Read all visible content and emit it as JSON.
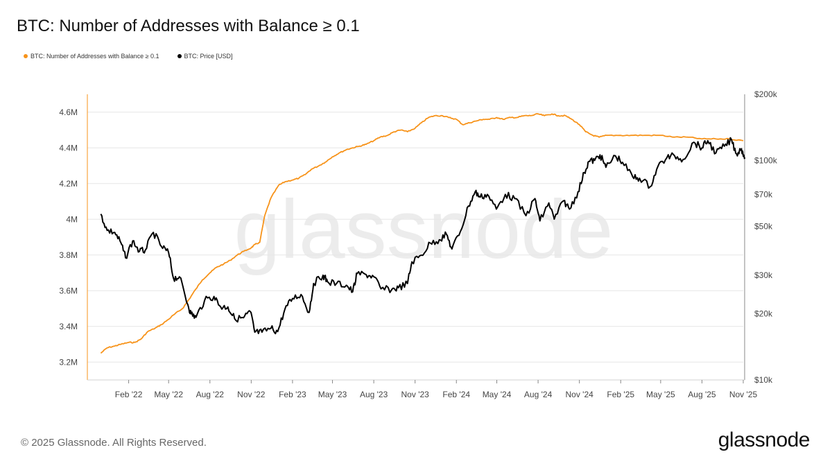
{
  "title": "BTC: Number of Addresses with Balance ≥ 0.1",
  "legend": [
    {
      "label": "BTC: Number of Addresses with Balance ≥ 0.1",
      "color": "#f7931a"
    },
    {
      "label": "BTC: Price [USD]",
      "color": "#000000"
    }
  ],
  "watermark": "glassnode",
  "footer": {
    "copyright": "© 2025 Glassnode. All Rights Reserved.",
    "logo": "glassnode"
  },
  "chart_data": {
    "type": "line",
    "x_axis": {
      "ticks": [
        "Feb '22",
        "May '22",
        "Aug '22",
        "Nov '22",
        "Feb '23",
        "May '23",
        "Aug '23",
        "Nov '23",
        "Feb '24",
        "May '24",
        "Aug '24",
        "Nov '24",
        "Feb '25",
        "May '25",
        "Aug '25",
        "Nov '25"
      ],
      "range": [
        "2021-11",
        "2025-11"
      ]
    },
    "y_left": {
      "ticks": [
        "3.2M",
        "3.4M",
        "3.6M",
        "3.8M",
        "4M",
        "4.2M",
        "4.4M",
        "4.6M"
      ],
      "range": [
        3.1,
        4.7
      ],
      "unit": "M addresses"
    },
    "y_right": {
      "ticks": [
        "$10k",
        "$20k",
        "$30k",
        "$50k",
        "$70k",
        "$100k",
        "$200k"
      ],
      "tick_values": [
        10000,
        20000,
        30000,
        50000,
        70000,
        100000,
        200000
      ],
      "scale": "log",
      "range": [
        10000,
        200000
      ]
    },
    "grid": true,
    "series": [
      {
        "name": "BTC: Number of Addresses with Balance ≥ 0.1",
        "color": "#f7931a",
        "axis": "left",
        "points": [
          [
            "2021-12-01",
            3.25
          ],
          [
            "2021-12-15",
            3.28
          ],
          [
            "2022-01-01",
            3.29
          ],
          [
            "2022-01-15",
            3.3
          ],
          [
            "2022-02-01",
            3.31
          ],
          [
            "2022-02-15",
            3.31
          ],
          [
            "2022-03-01",
            3.33
          ],
          [
            "2022-03-15",
            3.37
          ],
          [
            "2022-04-01",
            3.39
          ],
          [
            "2022-04-15",
            3.41
          ],
          [
            "2022-05-01",
            3.44
          ],
          [
            "2022-05-15",
            3.47
          ],
          [
            "2022-06-01",
            3.5
          ],
          [
            "2022-06-15",
            3.55
          ],
          [
            "2022-07-01",
            3.61
          ],
          [
            "2022-07-15",
            3.66
          ],
          [
            "2022-08-01",
            3.7
          ],
          [
            "2022-08-15",
            3.73
          ],
          [
            "2022-09-01",
            3.75
          ],
          [
            "2022-09-15",
            3.77
          ],
          [
            "2022-10-01",
            3.8
          ],
          [
            "2022-10-15",
            3.82
          ],
          [
            "2022-11-01",
            3.84
          ],
          [
            "2022-11-10",
            3.86
          ],
          [
            "2022-11-20",
            3.87
          ],
          [
            "2022-12-01",
            4.02
          ],
          [
            "2022-12-15",
            4.12
          ],
          [
            "2023-01-01",
            4.19
          ],
          [
            "2023-01-15",
            4.21
          ],
          [
            "2023-02-01",
            4.22
          ],
          [
            "2023-02-15",
            4.23
          ],
          [
            "2023-03-01",
            4.25
          ],
          [
            "2023-03-15",
            4.28
          ],
          [
            "2023-04-01",
            4.3
          ],
          [
            "2023-04-15",
            4.32
          ],
          [
            "2023-05-01",
            4.35
          ],
          [
            "2023-05-15",
            4.37
          ],
          [
            "2023-06-01",
            4.39
          ],
          [
            "2023-06-15",
            4.4
          ],
          [
            "2023-07-01",
            4.41
          ],
          [
            "2023-07-15",
            4.42
          ],
          [
            "2023-08-01",
            4.44
          ],
          [
            "2023-08-15",
            4.46
          ],
          [
            "2023-09-01",
            4.47
          ],
          [
            "2023-09-15",
            4.49
          ],
          [
            "2023-10-01",
            4.5
          ],
          [
            "2023-10-15",
            4.49
          ],
          [
            "2023-11-01",
            4.51
          ],
          [
            "2023-11-15",
            4.54
          ],
          [
            "2023-12-01",
            4.57
          ],
          [
            "2023-12-15",
            4.58
          ],
          [
            "2024-01-01",
            4.58
          ],
          [
            "2024-01-15",
            4.57
          ],
          [
            "2024-02-01",
            4.56
          ],
          [
            "2024-02-15",
            4.53
          ],
          [
            "2024-03-01",
            4.54
          ],
          [
            "2024-03-15",
            4.55
          ],
          [
            "2024-04-01",
            4.56
          ],
          [
            "2024-04-15",
            4.56
          ],
          [
            "2024-05-01",
            4.57
          ],
          [
            "2024-05-15",
            4.56
          ],
          [
            "2024-06-01",
            4.57
          ],
          [
            "2024-06-15",
            4.57
          ],
          [
            "2024-07-01",
            4.58
          ],
          [
            "2024-07-15",
            4.58
          ],
          [
            "2024-08-01",
            4.59
          ],
          [
            "2024-08-15",
            4.58
          ],
          [
            "2024-09-01",
            4.59
          ],
          [
            "2024-09-15",
            4.58
          ],
          [
            "2024-10-01",
            4.58
          ],
          [
            "2024-10-15",
            4.56
          ],
          [
            "2024-11-01",
            4.53
          ],
          [
            "2024-11-15",
            4.49
          ],
          [
            "2024-12-01",
            4.47
          ],
          [
            "2024-12-15",
            4.46
          ],
          [
            "2025-01-01",
            4.47
          ],
          [
            "2025-02-01",
            4.47
          ],
          [
            "2025-03-01",
            4.47
          ],
          [
            "2025-04-01",
            4.47
          ],
          [
            "2025-05-01",
            4.47
          ],
          [
            "2025-06-01",
            4.46
          ],
          [
            "2025-07-01",
            4.46
          ],
          [
            "2025-08-01",
            4.45
          ],
          [
            "2025-09-01",
            4.45
          ],
          [
            "2025-10-01",
            4.45
          ],
          [
            "2025-11-01",
            4.44
          ]
        ]
      },
      {
        "name": "BTC: Price [USD]",
        "color": "#000000",
        "axis": "right",
        "points": [
          [
            "2021-12-01",
            57000
          ],
          [
            "2021-12-15",
            48000
          ],
          [
            "2022-01-01",
            47000
          ],
          [
            "2022-01-15",
            42000
          ],
          [
            "2022-01-25",
            36000
          ],
          [
            "2022-02-10",
            43000
          ],
          [
            "2022-02-25",
            38500
          ],
          [
            "2022-03-10",
            39000
          ],
          [
            "2022-03-28",
            47000
          ],
          [
            "2022-04-15",
            40500
          ],
          [
            "2022-05-01",
            38000
          ],
          [
            "2022-05-12",
            29000
          ],
          [
            "2022-05-25",
            29500
          ],
          [
            "2022-06-13",
            22000
          ],
          [
            "2022-06-20",
            20000
          ],
          [
            "2022-07-01",
            19300
          ],
          [
            "2022-07-20",
            23000
          ],
          [
            "2022-08-10",
            24000
          ],
          [
            "2022-08-25",
            21500
          ],
          [
            "2022-09-10",
            21500
          ],
          [
            "2022-09-25",
            19000
          ],
          [
            "2022-10-15",
            19200
          ],
          [
            "2022-10-30",
            20500
          ],
          [
            "2022-11-09",
            16500
          ],
          [
            "2022-11-25",
            16500
          ],
          [
            "2022-12-15",
            17200
          ],
          [
            "2022-12-30",
            16600
          ],
          [
            "2023-01-15",
            21000
          ],
          [
            "2023-02-01",
            23500
          ],
          [
            "2023-02-20",
            24500
          ],
          [
            "2023-03-10",
            20300
          ],
          [
            "2023-03-20",
            27500
          ],
          [
            "2023-04-10",
            30000
          ],
          [
            "2023-04-20",
            28000
          ],
          [
            "2023-05-10",
            27500
          ],
          [
            "2023-06-01",
            27000
          ],
          [
            "2023-06-15",
            25200
          ],
          [
            "2023-06-25",
            30500
          ],
          [
            "2023-07-15",
            30200
          ],
          [
            "2023-08-01",
            29500
          ],
          [
            "2023-08-17",
            26000
          ],
          [
            "2023-09-10",
            25800
          ],
          [
            "2023-09-25",
            26300
          ],
          [
            "2023-10-15",
            27500
          ],
          [
            "2023-10-25",
            34500
          ],
          [
            "2023-11-15",
            37000
          ],
          [
            "2023-12-05",
            42000
          ],
          [
            "2023-12-25",
            43500
          ],
          [
            "2024-01-10",
            46000
          ],
          [
            "2024-01-22",
            39500
          ],
          [
            "2024-02-10",
            47500
          ],
          [
            "2024-02-28",
            62000
          ],
          [
            "2024-03-14",
            72000
          ],
          [
            "2024-03-25",
            68000
          ],
          [
            "2024-04-10",
            70000
          ],
          [
            "2024-04-30",
            60000
          ],
          [
            "2024-05-20",
            70000
          ],
          [
            "2024-06-10",
            67000
          ],
          [
            "2024-07-05",
            56000
          ],
          [
            "2024-07-25",
            67000
          ],
          [
            "2024-08-05",
            53000
          ],
          [
            "2024-08-25",
            64000
          ],
          [
            "2024-09-06",
            54000
          ],
          [
            "2024-09-27",
            65500
          ],
          [
            "2024-10-10",
            60000
          ],
          [
            "2024-10-29",
            72000
          ],
          [
            "2024-11-12",
            88000
          ],
          [
            "2024-11-22",
            99000
          ],
          [
            "2024-12-05",
            100000
          ],
          [
            "2024-12-17",
            106000
          ],
          [
            "2024-12-30",
            93000
          ],
          [
            "2025-01-20",
            105000
          ],
          [
            "2025-02-05",
            98000
          ],
          [
            "2025-02-28",
            84000
          ],
          [
            "2025-03-15",
            83000
          ],
          [
            "2025-04-08",
            76000
          ],
          [
            "2025-04-25",
            94000
          ],
          [
            "2025-05-15",
            103000
          ],
          [
            "2025-06-01",
            105000
          ],
          [
            "2025-06-20",
            101000
          ],
          [
            "2025-07-14",
            121000
          ],
          [
            "2025-08-01",
            114000
          ],
          [
            "2025-08-14",
            123000
          ],
          [
            "2025-09-01",
            108000
          ],
          [
            "2025-09-20",
            116000
          ],
          [
            "2025-10-06",
            124000
          ],
          [
            "2025-10-17",
            107000
          ],
          [
            "2025-10-28",
            113000
          ],
          [
            "2025-11-05",
            103000
          ]
        ]
      }
    ]
  }
}
